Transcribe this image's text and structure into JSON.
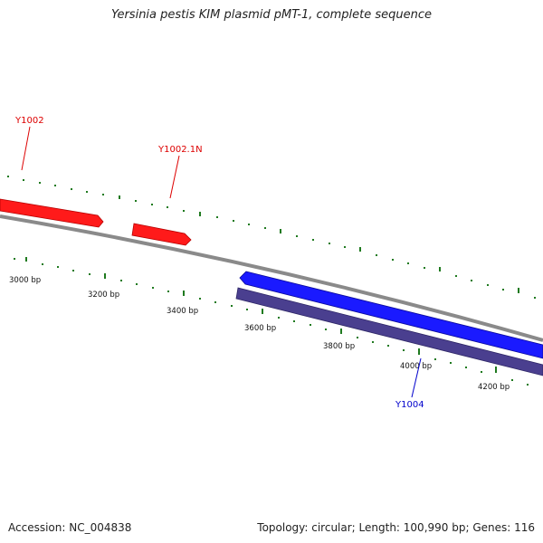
{
  "title": "Yersinia pestis KIM plasmid pMT-1, complete sequence",
  "footer": {
    "accession": "Accession: NC_004838",
    "summary": "Topology: circular; Length: 100,990 bp; Genes: 116"
  },
  "colors": {
    "backbone": "#8a8a8a",
    "tick": "#1f7a1f",
    "forward_gene": "#ff1a1a",
    "reverse_gene": "#1a1aff",
    "secondary_feature": "#4a3f8f"
  },
  "scale_labels": [
    "3000 bp",
    "3200 bp",
    "3400 bp",
    "3600 bp",
    "3800 bp",
    "4000 bp",
    "4200 bp"
  ],
  "genes": [
    {
      "label": "Y1002",
      "color": "#dd0000"
    },
    {
      "label": "Y1002.1N",
      "color": "#dd0000"
    },
    {
      "label": "Y1004",
      "color": "#0000cc"
    }
  ]
}
